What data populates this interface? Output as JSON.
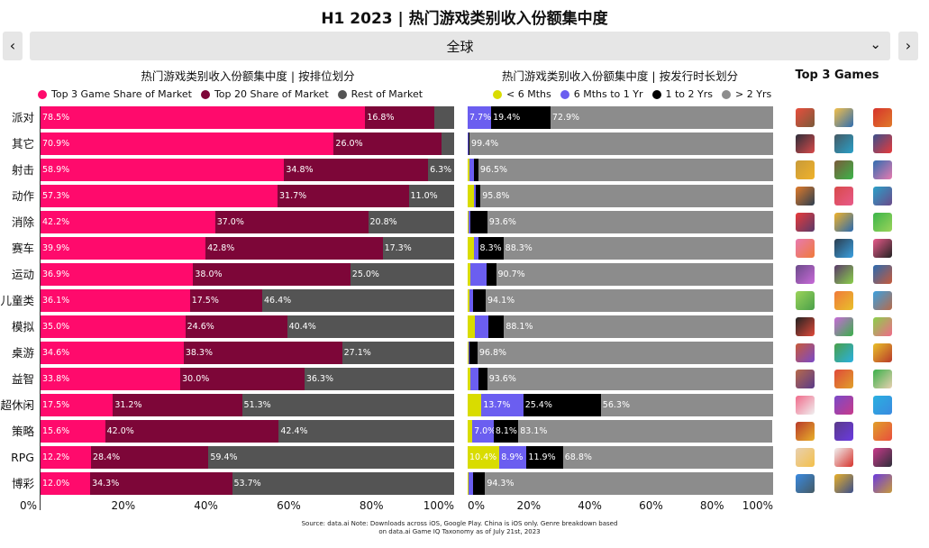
{
  "title": "H1 2023 | 热门游戏类别收入份额集中度",
  "nav": {
    "region": "全球",
    "prev_icon": "chevron-left-icon",
    "next_icon": "chevron-right-icon",
    "dropdown_icon": "chevron-down-icon"
  },
  "top3_title": "Top 3 Games",
  "source_line1": "Source: data.ai Note: Downloads across iOS, Google Play. China is iOS only. Genre breakdown based",
  "source_line2": "on data.ai Game IQ Taxonomy as of July 21st, 2023",
  "colors": {
    "top3": "#ff0a6c",
    "top20": "#7d0638",
    "rest": "#545454",
    "lt6": "#d9dc00",
    "6to12": "#6b5ef0",
    "1to2": "#000000",
    "gt2": "#8c8c8c"
  },
  "chart_data": [
    {
      "type": "bar",
      "title": "热门游戏类别收入份额集中度 | 按排位划分",
      "orientation": "horizontal",
      "stacked": true,
      "categories": [
        "派对",
        "其它",
        "射击",
        "动作",
        "消除",
        "赛车",
        "运动",
        "儿童类",
        "模拟",
        "桌游",
        "益智",
        "超休闲",
        "策略",
        "RPG",
        "博彩"
      ],
      "series": [
        {
          "name": "Top 3 Game Share of Market",
          "values": [
            78.5,
            70.9,
            58.9,
            57.3,
            42.2,
            39.9,
            36.9,
            36.1,
            35.0,
            34.6,
            33.8,
            17.5,
            15.6,
            12.2,
            12.0
          ]
        },
        {
          "name": "Top 20 Share of Market",
          "values": [
            16.8,
            26.0,
            34.8,
            31.7,
            37.0,
            42.8,
            38.0,
            17.5,
            24.6,
            38.3,
            30.0,
            31.2,
            42.0,
            28.4,
            34.3
          ]
        },
        {
          "name": "Rest of Market",
          "values": [
            4.7,
            3.1,
            6.3,
            11.0,
            20.8,
            17.3,
            25.0,
            46.4,
            40.4,
            27.1,
            36.3,
            51.3,
            42.4,
            59.4,
            53.7
          ]
        }
      ],
      "data_labels": [
        [
          "78.5%",
          "16.8%",
          ""
        ],
        [
          "70.9%",
          "26.0%",
          ""
        ],
        [
          "58.9%",
          "34.8%",
          "6.3%"
        ],
        [
          "57.3%",
          "31.7%",
          "11.0%"
        ],
        [
          "42.2%",
          "37.0%",
          "20.8%"
        ],
        [
          "39.9%",
          "42.8%",
          "17.3%"
        ],
        [
          "36.9%",
          "38.0%",
          "25.0%"
        ],
        [
          "36.1%",
          "17.5%",
          "46.4%"
        ],
        [
          "35.0%",
          "24.6%",
          "40.4%"
        ],
        [
          "34.6%",
          "38.3%",
          "27.1%"
        ],
        [
          "33.8%",
          "30.0%",
          "36.3%"
        ],
        [
          "17.5%",
          "31.2%",
          "51.3%"
        ],
        [
          "15.6%",
          "42.0%",
          "42.4%"
        ],
        [
          "12.2%",
          "28.4%",
          "59.4%"
        ],
        [
          "12.0%",
          "34.3%",
          "53.7%"
        ]
      ],
      "xlim": [
        0,
        100
      ],
      "x_ticks": [
        "0%",
        "20%",
        "40%",
        "60%",
        "80%",
        "100%"
      ],
      "legend": "top"
    },
    {
      "type": "bar",
      "title": "热门游戏类别收入份额集中度 | 按发行时长划分",
      "orientation": "horizontal",
      "stacked": true,
      "categories": [
        "派对",
        "其它",
        "射击",
        "动作",
        "消除",
        "赛车",
        "运动",
        "儿童类",
        "模拟",
        "桌游",
        "益智",
        "超休闲",
        "策略",
        "RPG",
        "博彩"
      ],
      "series": [
        {
          "name": "< 6 Mths",
          "values": [
            0,
            0,
            0.5,
            2.0,
            0.3,
            2.0,
            1.0,
            0.5,
            2.5,
            0.3,
            1.0,
            4.5,
            1.5,
            10.4,
            0.3
          ]
        },
        {
          "name": "6 Mths to 1 Yr",
          "values": [
            7.7,
            0.3,
            1.5,
            0.6,
            0.6,
            1.4,
            5.3,
            1.4,
            4.3,
            0.3,
            2.5,
            13.7,
            7.0,
            8.9,
            1.4
          ]
        },
        {
          "name": "1 to 2 Yrs",
          "values": [
            19.4,
            0.3,
            1.5,
            1.6,
            5.5,
            8.3,
            3.0,
            4.0,
            5.1,
            2.6,
            2.9,
            25.4,
            8.1,
            11.9,
            4.0
          ]
        },
        {
          "name": "> 2 Yrs",
          "values": [
            72.9,
            99.4,
            96.5,
            95.8,
            93.6,
            88.3,
            90.7,
            94.1,
            88.1,
            96.8,
            93.6,
            56.3,
            83.1,
            68.8,
            94.3
          ]
        }
      ],
      "data_labels": [
        [
          "",
          "7.7%",
          "19.4%",
          "72.9%"
        ],
        [
          "",
          "",
          "",
          "99.4%"
        ],
        [
          "",
          "",
          "",
          "96.5%"
        ],
        [
          "",
          "",
          "",
          "95.8%"
        ],
        [
          "",
          "",
          "",
          "93.6%"
        ],
        [
          "",
          "",
          "8.3%",
          "88.3%"
        ],
        [
          "",
          "",
          "",
          "90.7%"
        ],
        [
          "",
          "",
          "",
          "94.1%"
        ],
        [
          "",
          "",
          "",
          "88.1%"
        ],
        [
          "",
          "",
          "",
          "96.8%"
        ],
        [
          "",
          "",
          "",
          "93.6%"
        ],
        [
          "",
          "13.7%",
          "25.4%",
          "56.3%"
        ],
        [
          "",
          "7.0%",
          "8.1%",
          "83.1%"
        ],
        [
          "10.4%",
          "8.9%",
          "11.9%",
          "68.8%"
        ],
        [
          "",
          "",
          "",
          "94.3%"
        ]
      ],
      "xlim": [
        0,
        100
      ],
      "x_ticks": [
        "0%",
        "20%",
        "40%",
        "60%",
        "80%",
        "100%"
      ],
      "legend": "top"
    }
  ]
}
